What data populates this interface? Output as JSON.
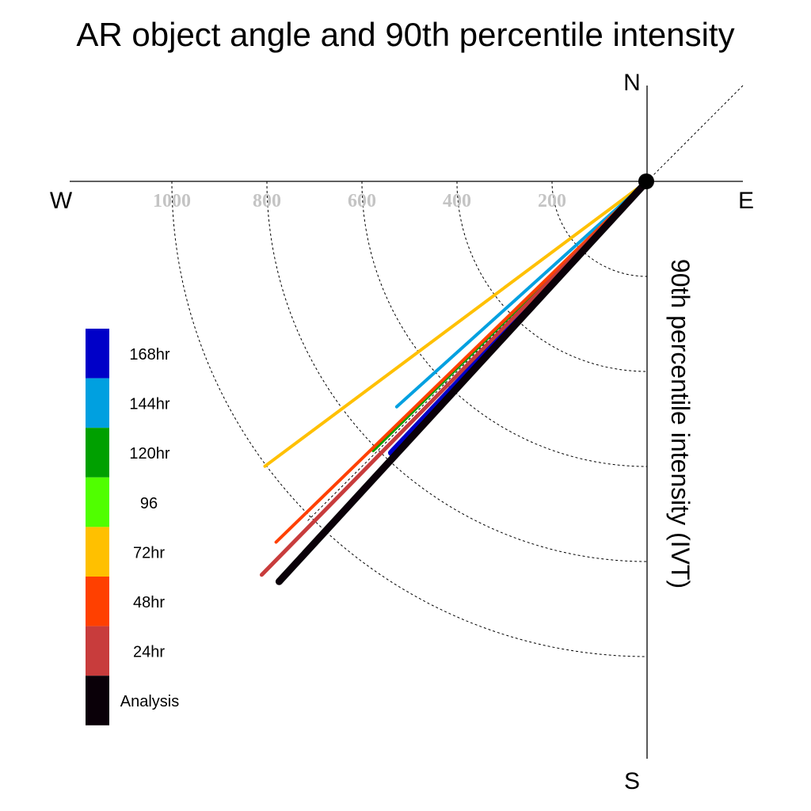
{
  "chart_data": {
    "type": "polar-vector",
    "title": "AR object angle and 90th percentile intensity",
    "ylabel": "90th percentile intensity (IVT)",
    "directions": {
      "n": "N",
      "s": "S",
      "e": "E",
      "w": "W"
    },
    "rlim": [
      0,
      1200
    ],
    "rings": [
      200,
      400,
      600,
      800,
      1000
    ],
    "ring_labels": [
      "200",
      "400",
      "600",
      "800",
      "1000"
    ],
    "series": [
      {
        "name": "168hr",
        "color": "#0000c8",
        "angle_deg": 223.3,
        "magnitude": 785
      },
      {
        "name": "144hr",
        "color": "#00a0e0",
        "angle_deg": 228.0,
        "magnitude": 709
      },
      {
        "name": "120hr",
        "color": "#00a000",
        "angle_deg": 225.5,
        "magnitude": 808
      },
      {
        "name": "96",
        "color": "#50ff00",
        "angle_deg": 225.5,
        "magnitude": 808
      },
      {
        "name": "72hr",
        "color": "#ffc000",
        "angle_deg": 233.3,
        "magnitude": 1003
      },
      {
        "name": "48hr",
        "color": "#ff4000",
        "angle_deg": 225.8,
        "magnitude": 1089
      },
      {
        "name": "24hr",
        "color": "#c83c3c",
        "angle_deg": 224.4,
        "magnitude": 1159
      },
      {
        "name": "Analysis",
        "color": "#0a0008",
        "angle_deg": 222.6,
        "magnitude": 1144
      }
    ]
  }
}
